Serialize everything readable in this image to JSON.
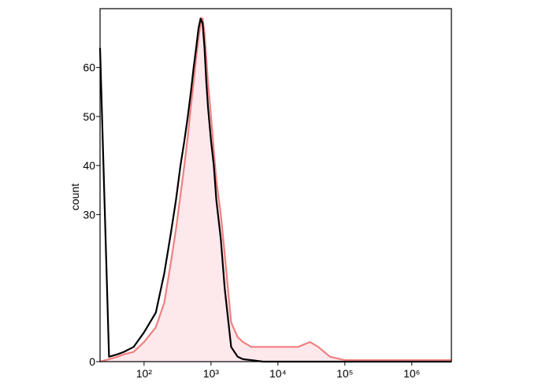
{
  "chart_data": {
    "type": "line",
    "ylabel": "count",
    "xscale": "log",
    "xlim": [
      22,
      3900000
    ],
    "xticks": [
      {
        "value": 100,
        "label": "10²"
      },
      {
        "value": 1000,
        "label": "10³"
      },
      {
        "value": 10000,
        "label": "10⁴"
      },
      {
        "value": 100000,
        "label": "10⁵"
      },
      {
        "value": 1000000,
        "label": "10⁶"
      }
    ],
    "ylim": [
      0,
      72
    ],
    "yticks": [
      0,
      30,
      40,
      50,
      60
    ],
    "x": [
      22,
      30,
      40,
      50,
      70,
      100,
      150,
      200,
      250,
      300,
      350,
      400,
      450,
      500,
      550,
      600,
      650,
      700,
      750,
      800,
      850,
      900,
      1000,
      1100,
      1200,
      1400,
      1600,
      2000,
      2500,
      3000,
      4000,
      6000,
      10000,
      20000,
      30000,
      40000,
      60000,
      100000,
      1000000,
      3900000
    ],
    "series": [
      {
        "color": "#f08080",
        "fill": "#fde8ec",
        "values": [
          0,
          0.5,
          1,
          1.5,
          2,
          4,
          7,
          12,
          20,
          27,
          34,
          40,
          46,
          52,
          57,
          62,
          66,
          69,
          70,
          67,
          62,
          57,
          50,
          43,
          37,
          30,
          22,
          8,
          5,
          4,
          3,
          3,
          3,
          3,
          4,
          3,
          1,
          0.3,
          0.3,
          0.3
        ]
      },
      {
        "color": "#000000",
        "values": [
          64,
          1,
          1.5,
          2,
          3,
          6,
          10,
          18,
          26,
          33,
          40,
          45,
          50,
          55,
          60,
          64,
          68,
          70,
          69,
          64,
          57,
          52,
          45,
          40,
          33,
          25,
          15,
          3,
          1,
          0.5,
          0.3,
          0,
          0,
          0,
          0,
          0,
          0,
          0,
          0,
          0
        ]
      }
    ]
  }
}
